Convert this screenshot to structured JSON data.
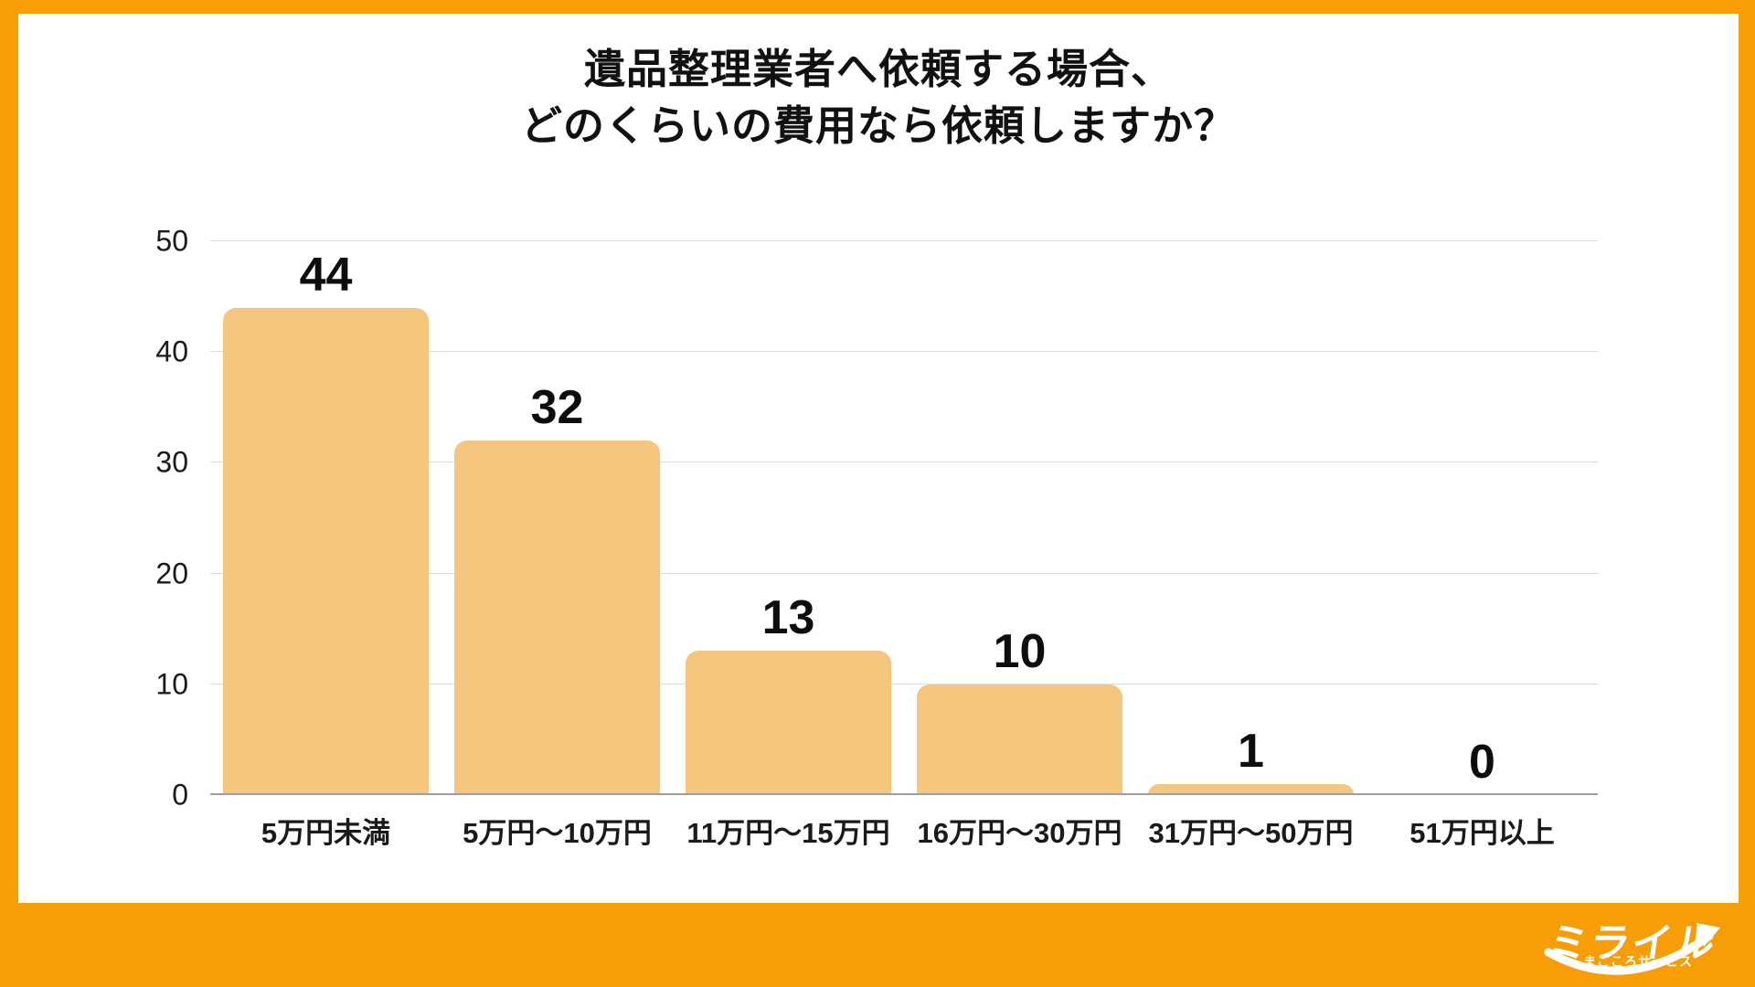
{
  "frame": {
    "border_color": "#F99D06",
    "panel_background": "#FFFFFF"
  },
  "title": {
    "line1": "遺品整理業者へ依頼する場合、",
    "line2": "どのくらいの費用なら依頼しますか？"
  },
  "chart_data": {
    "type": "bar",
    "title": "遺品整理業者へ依頼する場合、どのくらいの費用なら依頼しますか？",
    "categories": [
      "5万円未満",
      "5万円〜10万円",
      "11万円〜15万円",
      "16万円〜30万円",
      "31万円〜50万円",
      "51万円以上"
    ],
    "values": [
      44,
      32,
      13,
      10,
      1,
      0
    ],
    "xlabel": "",
    "ylabel": "",
    "ylim": [
      0,
      50
    ],
    "yticks": [
      0,
      10,
      20,
      30,
      40,
      50
    ],
    "grid": true,
    "legend": false,
    "bar_color": "#F5C67D",
    "gridline_color": "#DCDCDC",
    "axis_line_color": "#A0A0A0",
    "value_label_color": "#0D0D0D"
  },
  "logo": {
    "main": "ミライル",
    "sub": "まごころサービス",
    "color": "#FFFFFF"
  }
}
